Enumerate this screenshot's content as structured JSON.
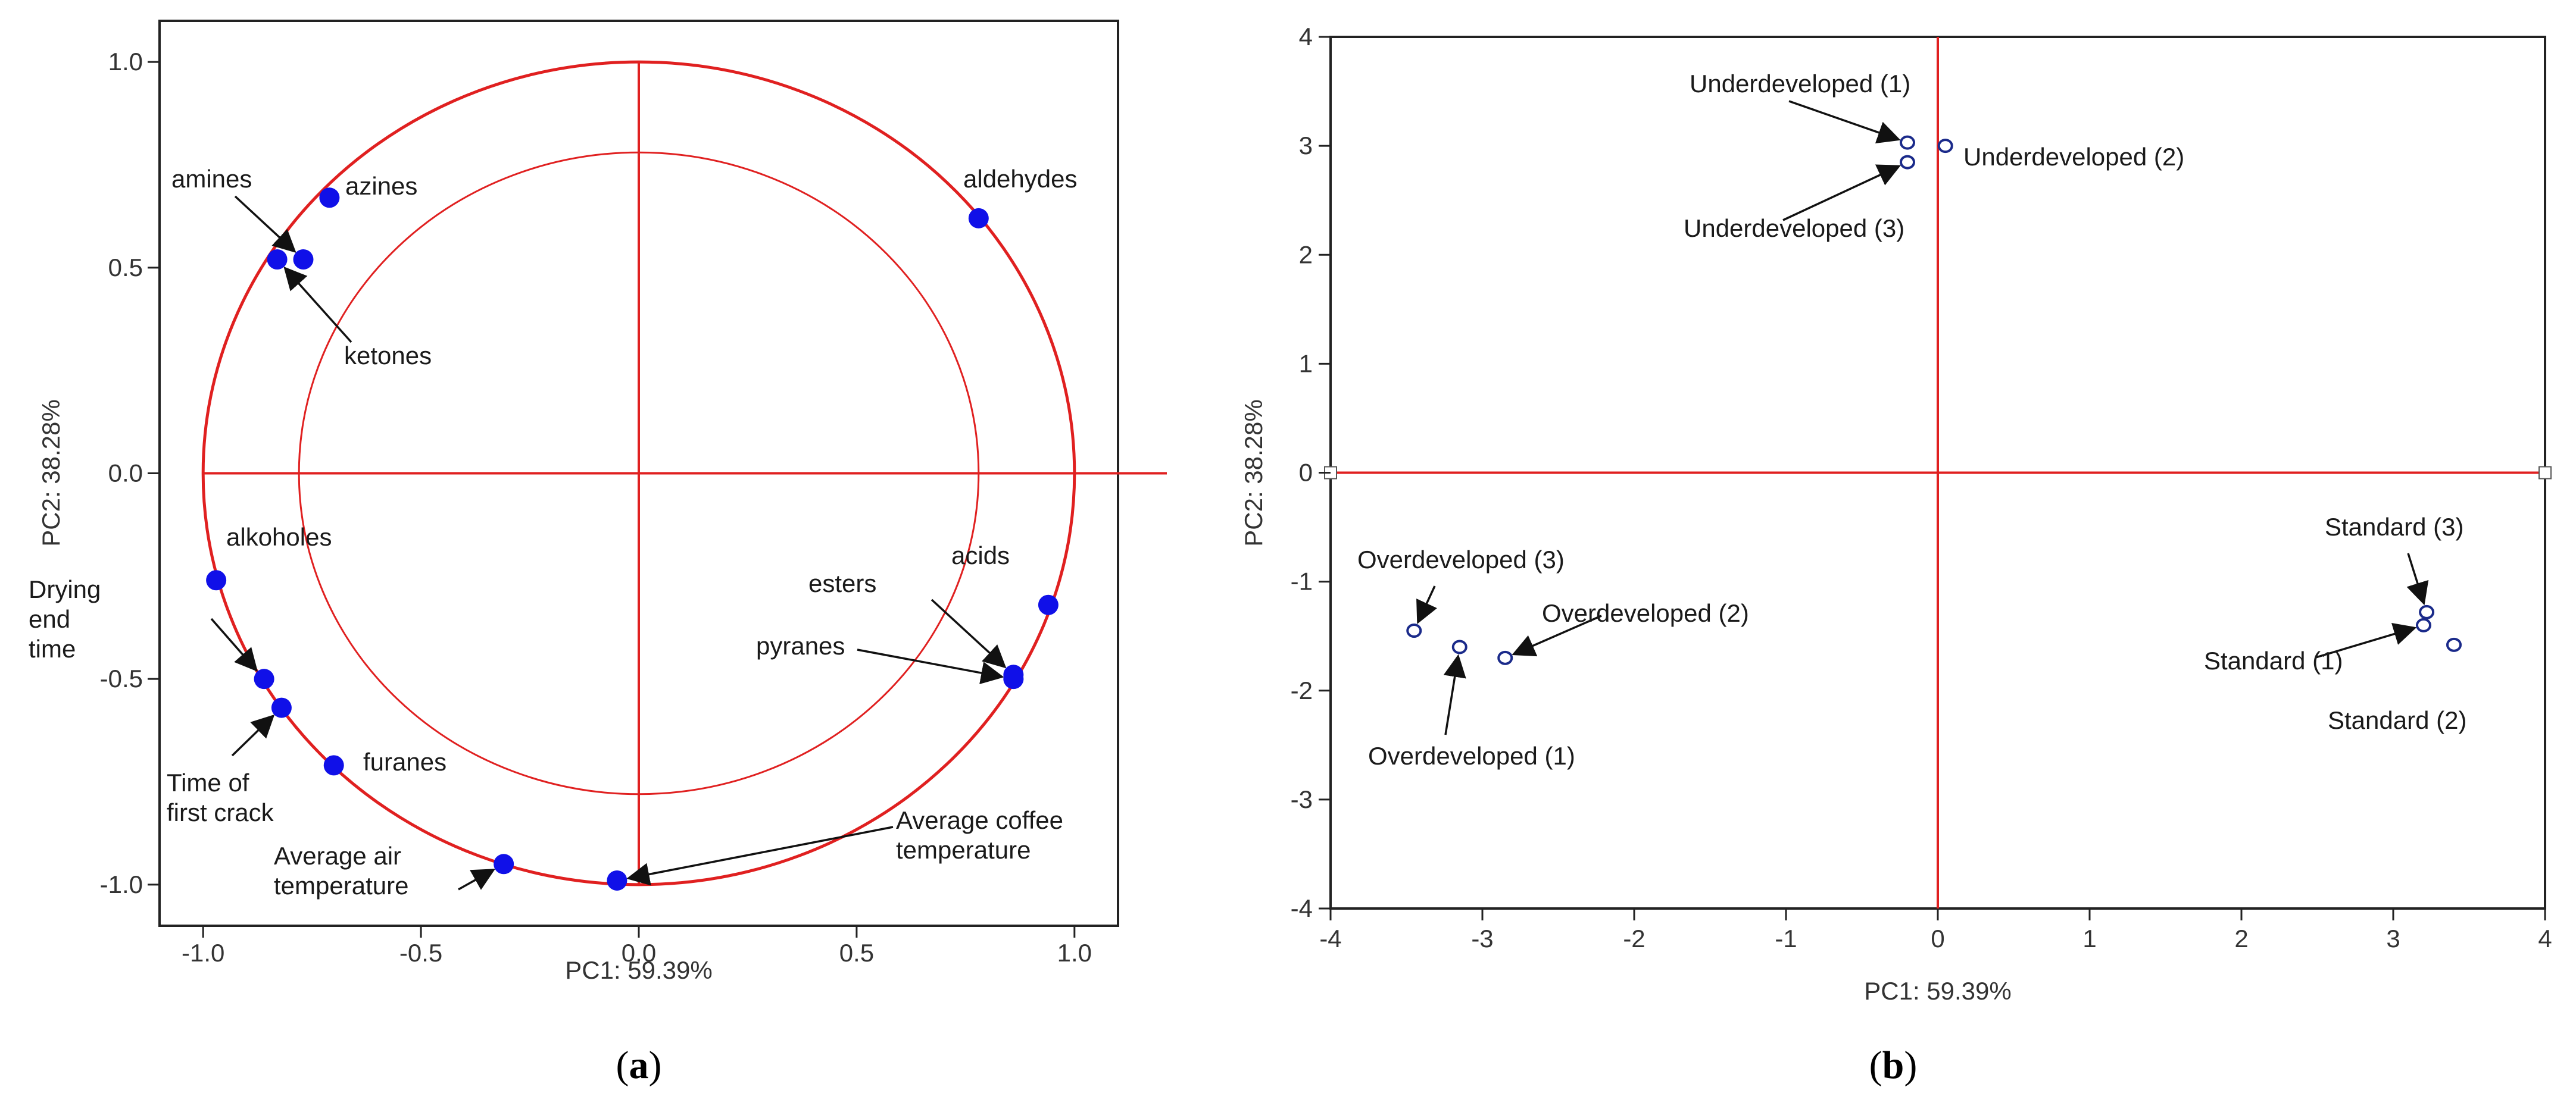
{
  "captions": {
    "a": "a",
    "b": "b"
  },
  "colors": {
    "guide": "#e02020",
    "point_a": "#1010e8",
    "point_b": "#1a2a8a"
  },
  "chart_data": [
    {
      "type": "scatter",
      "xlabel": "PC1: 59.39%",
      "ylabel": "PC2: 38.28%",
      "xlim": [
        -1.1,
        1.1
      ],
      "ylim": [
        -1.1,
        1.1
      ],
      "xticks": [
        "-1.0",
        "-0.5",
        "0.0",
        "0.5",
        "1.0"
      ],
      "yticks": [
        "1.0",
        "0.5",
        "0.0",
        "-0.5",
        "-1.0"
      ],
      "circles": [
        1.0,
        0.78
      ],
      "points": [
        {
          "x": -0.71,
          "y": 0.67,
          "label": "azines"
        },
        {
          "x": -0.83,
          "y": 0.52,
          "label": "amines"
        },
        {
          "x": -0.77,
          "y": 0.52,
          "label": "ketones"
        },
        {
          "x": 0.78,
          "y": 0.62,
          "label": "aldehydes"
        },
        {
          "x": -0.97,
          "y": -0.26,
          "label": "alkoholes"
        },
        {
          "x": 0.94,
          "y": -0.32,
          "label": "acids"
        },
        {
          "x": 0.86,
          "y": -0.49,
          "label": "esters"
        },
        {
          "x": 0.86,
          "y": -0.5,
          "label": "pyranes"
        },
        {
          "x": -0.86,
          "y": -0.5,
          "label": "Drying end time"
        },
        {
          "x": -0.82,
          "y": -0.57,
          "label": "Time of first crack"
        },
        {
          "x": -0.7,
          "y": -0.71,
          "label": "furanes"
        },
        {
          "x": -0.31,
          "y": -0.95,
          "label": "Average air temperature"
        },
        {
          "x": -0.05,
          "y": -0.99,
          "label": "Average coffee temperature"
        }
      ]
    },
    {
      "type": "scatter",
      "xlabel": "PC1: 59.39%",
      "ylabel": "PC2: 38.28%",
      "xlim": [
        -4,
        4
      ],
      "ylim": [
        -4,
        4
      ],
      "xticks": [
        "-4",
        "-3",
        "-2",
        "-1",
        "0",
        "1",
        "2",
        "3",
        "4"
      ],
      "yticks": [
        "4",
        "3",
        "2",
        "1",
        "0",
        "-1",
        "-2",
        "-3",
        "-4"
      ],
      "points": [
        {
          "x": -0.2,
          "y": 3.03,
          "label": "Underdeveloped (1)"
        },
        {
          "x": 0.05,
          "y": 3.0,
          "label": "Underdeveloped (2)"
        },
        {
          "x": -0.2,
          "y": 2.85,
          "label": "Underdeveloped (3)"
        },
        {
          "x": -3.15,
          "y": -1.6,
          "label": "Overdeveloped (1)"
        },
        {
          "x": -2.85,
          "y": -1.7,
          "label": "Overdeveloped (2)"
        },
        {
          "x": -3.45,
          "y": -1.45,
          "label": "Overdeveloped (3)"
        },
        {
          "x": 3.2,
          "y": -1.4,
          "label": "Standard (1)"
        },
        {
          "x": 3.4,
          "y": -1.58,
          "label": "Standard (2)"
        },
        {
          "x": 3.22,
          "y": -1.28,
          "label": "Standard (3)"
        }
      ]
    }
  ]
}
